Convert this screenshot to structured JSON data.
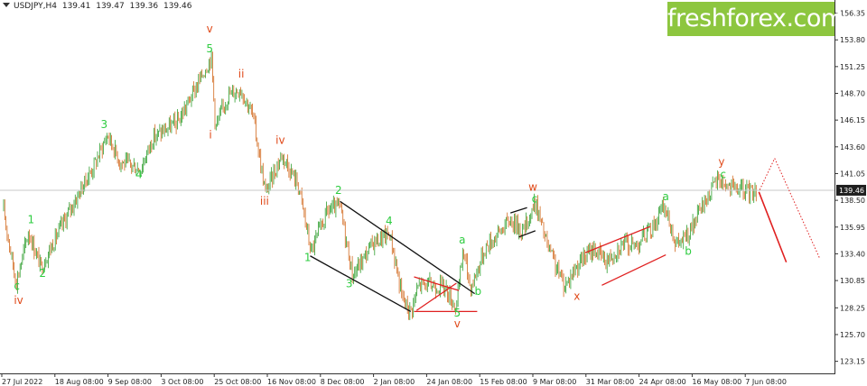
{
  "header": {
    "symbol": "USDJPY,H4",
    "open": "139.41",
    "high": "139.47",
    "low": "139.36",
    "close": "139.46"
  },
  "logo": {
    "text": "freshforex.com",
    "color": "#8dc63f"
  },
  "colors": {
    "green_label": "#2ecc40",
    "red_label": "#e04a1a",
    "bull_candle": "#2e9e2e",
    "bear_candle": "#d2691e",
    "channel_black": "#111111",
    "channel_red": "#e02020",
    "forecast": "#e02020"
  },
  "chart_data": {
    "type": "candlestick",
    "instrument": "USDJPY",
    "timeframe": "H4",
    "ylim": [
      122.0,
      157.6
    ],
    "y_ticks": [
      156.35,
      153.8,
      151.25,
      148.7,
      146.15,
      143.6,
      141.05,
      138.5,
      135.95,
      133.4,
      130.85,
      128.25,
      125.7,
      123.15
    ],
    "y_tick_labels": [
      "156.35",
      "153.80",
      "151.25",
      "148.70",
      "146.15",
      "143.60",
      "141.05",
      "138.50",
      "135.95",
      "133.40",
      "130.85",
      "128.25",
      "125.70",
      "123.15"
    ],
    "current_price": 139.46,
    "current_price_label": "139.46",
    "x_labels": [
      "27 Jul 2022",
      "18 Aug 08:00",
      "9 Sep 08:00",
      "3 Oct 08:00",
      "25 Oct 08:00",
      "16 Nov 08:00",
      "8 Dec 08:00",
      "2 Jan 08:00",
      "24 Jan 08:00",
      "15 Feb 08:00",
      "9 Mar 08:00",
      "31 Mar 08:00",
      "24 Apr 08:00",
      "16 May 08:00",
      "7 Jun 08:00"
    ],
    "x_range": [
      0,
      1
    ],
    "price_path": [
      [
        0.0,
        137.5
      ],
      [
        0.015,
        130.6
      ],
      [
        0.03,
        135.5
      ],
      [
        0.045,
        132.1
      ],
      [
        0.06,
        134.5
      ],
      [
        0.08,
        137.6
      ],
      [
        0.11,
        142.0
      ],
      [
        0.125,
        144.8
      ],
      [
        0.14,
        142.2
      ],
      [
        0.165,
        141.5
      ],
      [
        0.18,
        144.5
      ],
      [
        0.21,
        146.0
      ],
      [
        0.235,
        149.8
      ],
      [
        0.25,
        152.2
      ],
      [
        0.255,
        145.4
      ],
      [
        0.27,
        148.5
      ],
      [
        0.285,
        149.2
      ],
      [
        0.3,
        146.6
      ],
      [
        0.315,
        139.2
      ],
      [
        0.335,
        142.9
      ],
      [
        0.355,
        139.9
      ],
      [
        0.37,
        133.6
      ],
      [
        0.39,
        137.5
      ],
      [
        0.405,
        137.9
      ],
      [
        0.42,
        131.3
      ],
      [
        0.445,
        134.5
      ],
      [
        0.465,
        135.3
      ],
      [
        0.48,
        129.1
      ],
      [
        0.49,
        127.9
      ],
      [
        0.5,
        130.5
      ],
      [
        0.53,
        130.3
      ],
      [
        0.545,
        128.2
      ],
      [
        0.553,
        133.9
      ],
      [
        0.562,
        130.1
      ],
      [
        0.58,
        134.0
      ],
      [
        0.61,
        136.7
      ],
      [
        0.625,
        135.5
      ],
      [
        0.64,
        138.3
      ],
      [
        0.655,
        134.0
      ],
      [
        0.675,
        130.3
      ],
      [
        0.69,
        132.3
      ],
      [
        0.71,
        133.9
      ],
      [
        0.725,
        132.7
      ],
      [
        0.745,
        134.4
      ],
      [
        0.76,
        134.2
      ],
      [
        0.78,
        135.8
      ],
      [
        0.795,
        138.0
      ],
      [
        0.81,
        134.2
      ],
      [
        0.825,
        135.3
      ],
      [
        0.84,
        137.8
      ],
      [
        0.86,
        140.6
      ],
      [
        0.875,
        139.7
      ],
      [
        0.895,
        139.3
      ],
      [
        0.906,
        139.46
      ]
    ],
    "wave_labels": [
      {
        "text": "c",
        "x": 0.016,
        "y": 130.0,
        "color": "green"
      },
      {
        "text": "iv",
        "x": 0.018,
        "y": 128.6,
        "color": "red"
      },
      {
        "text": "1",
        "x": 0.033,
        "y": 136.3,
        "color": "green"
      },
      {
        "text": "2",
        "x": 0.047,
        "y": 131.2,
        "color": "green"
      },
      {
        "text": "3",
        "x": 0.121,
        "y": 145.4,
        "color": "green"
      },
      {
        "text": "4",
        "x": 0.163,
        "y": 140.6,
        "color": "green"
      },
      {
        "text": "v",
        "x": 0.248,
        "y": 154.5,
        "color": "red"
      },
      {
        "text": "5",
        "x": 0.248,
        "y": 152.6,
        "color": "green"
      },
      {
        "text": "i",
        "x": 0.249,
        "y": 144.4,
        "color": "red"
      },
      {
        "text": "ii",
        "x": 0.286,
        "y": 150.2,
        "color": "red"
      },
      {
        "text": "iv",
        "x": 0.333,
        "y": 143.9,
        "color": "red"
      },
      {
        "text": "iii",
        "x": 0.314,
        "y": 138.1,
        "color": "red"
      },
      {
        "text": "1",
        "x": 0.366,
        "y": 132.7,
        "color": "green"
      },
      {
        "text": "2",
        "x": 0.403,
        "y": 139.1,
        "color": "green"
      },
      {
        "text": "3",
        "x": 0.416,
        "y": 130.2,
        "color": "green"
      },
      {
        "text": "4",
        "x": 0.464,
        "y": 136.2,
        "color": "green"
      },
      {
        "text": "5",
        "x": 0.546,
        "y": 127.4,
        "color": "green"
      },
      {
        "text": "v",
        "x": 0.546,
        "y": 126.4,
        "color": "red"
      },
      {
        "text": "a",
        "x": 0.552,
        "y": 134.4,
        "color": "green"
      },
      {
        "text": "b",
        "x": 0.571,
        "y": 129.5,
        "color": "green"
      },
      {
        "text": "w",
        "x": 0.637,
        "y": 139.4,
        "color": "red"
      },
      {
        "text": "c",
        "x": 0.639,
        "y": 138.3,
        "color": "green"
      },
      {
        "text": "x",
        "x": 0.69,
        "y": 129.0,
        "color": "red"
      },
      {
        "text": "a",
        "x": 0.797,
        "y": 138.5,
        "color": "green"
      },
      {
        "text": "b",
        "x": 0.824,
        "y": 133.3,
        "color": "green"
      },
      {
        "text": "y",
        "x": 0.864,
        "y": 141.8,
        "color": "red"
      },
      {
        "text": "c",
        "x": 0.866,
        "y": 140.6,
        "color": "green"
      }
    ],
    "black_channel": [
      {
        "x1": 0.405,
        "y1": 138.4,
        "x2": 0.567,
        "y2": 129.6
      },
      {
        "x1": 0.369,
        "y1": 133.2,
        "x2": 0.49,
        "y2": 127.9
      }
    ],
    "red_triangle": [
      {
        "x1": 0.494,
        "y1": 131.2,
        "x2": 0.548,
        "y2": 129.9
      },
      {
        "x1": 0.494,
        "y1": 127.9,
        "x2": 0.57,
        "y2": 127.9
      },
      {
        "x1": 0.497,
        "y1": 128.0,
        "x2": 0.545,
        "y2": 130.6
      }
    ],
    "small_black_channel": [
      {
        "x1": 0.61,
        "y1": 137.3,
        "x2": 0.63,
        "y2": 137.8
      },
      {
        "x1": 0.62,
        "y1": 135.0,
        "x2": 0.64,
        "y2": 135.6
      }
    ],
    "red_channel": [
      {
        "x1": 0.7,
        "y1": 133.5,
        "x2": 0.778,
        "y2": 136.0
      },
      {
        "x1": 0.72,
        "y1": 130.4,
        "x2": 0.797,
        "y2": 133.3
      }
    ],
    "forecast": {
      "solid": {
        "x1": 0.909,
        "y1": 139.3,
        "x2": 0.942,
        "y2": 132.6
      },
      "dotted_up": {
        "x1": 0.91,
        "y1": 139.5,
        "x2": 0.928,
        "y2": 142.5
      },
      "dotted_down": {
        "x1": 0.928,
        "y1": 142.5,
        "x2": 0.982,
        "y2": 133.0
      }
    }
  }
}
